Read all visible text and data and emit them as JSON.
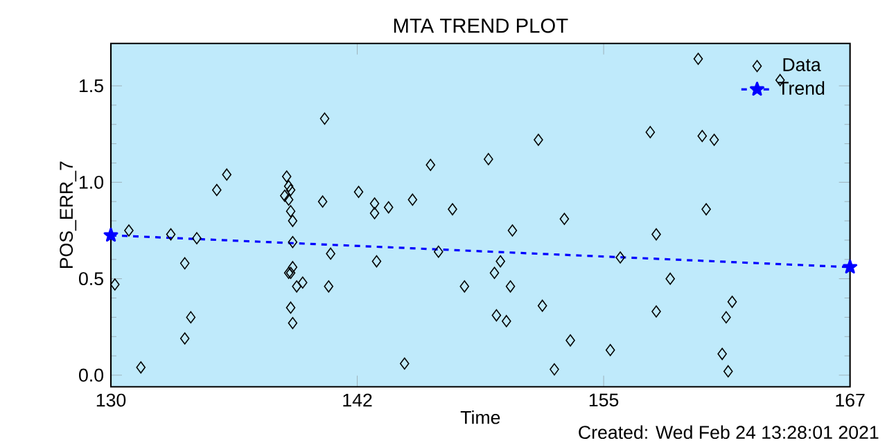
{
  "chart_data": {
    "type": "scatter",
    "title": "MTA TREND PLOT",
    "xlabel": "Time",
    "ylabel": "POS_ERR_7",
    "annotations": [
      "Created: Wed Feb 24 13:28:01 2021"
    ],
    "xlim": [
      130,
      167
    ],
    "ylim": [
      -0.06,
      1.72
    ],
    "xticks": [
      130,
      {
        "value": 142.333,
        "label": "142"
      },
      {
        "value": 154.667,
        "label": "155"
      },
      167
    ],
    "yticks": [
      {
        "value": 0,
        "label": "0.0"
      },
      {
        "value": 0.5,
        "label": "0.5"
      },
      {
        "value": 1,
        "label": "1.0"
      },
      {
        "value": 1.5,
        "label": "1.5"
      }
    ],
    "legend": "top right",
    "grid": false,
    "series": [
      {
        "name": "Data",
        "marker": "diamond",
        "color": "#000000",
        "x": [
          130.2,
          130.9,
          131.5,
          133.0,
          133.7,
          133.7,
          134.0,
          134.3,
          135.3,
          135.8,
          138.8,
          138.9,
          139.0,
          138.7,
          138.9,
          139.0,
          139.1,
          139.1,
          139.1,
          138.9,
          139.0,
          139.3,
          139.6,
          139.0,
          139.1,
          140.6,
          140.7,
          140.9,
          141.0,
          142.4,
          143.2,
          143.2,
          143.3,
          143.9,
          144.7,
          145.1,
          146.0,
          146.4,
          147.1,
          147.7,
          148.9,
          149.2,
          149.3,
          149.5,
          149.8,
          150.0,
          150.1,
          151.4,
          151.6,
          152.2,
          152.7,
          153.0,
          155.0,
          155.5,
          157.0,
          157.3,
          157.3,
          158.0,
          159.4,
          159.6,
          159.8,
          160.2,
          160.6,
          160.8,
          160.9,
          161.1,
          163.5
        ],
        "values": [
          0.47,
          0.75,
          0.04,
          0.73,
          0.58,
          0.19,
          0.3,
          0.71,
          0.96,
          1.04,
          1.03,
          0.98,
          0.96,
          0.93,
          0.91,
          0.85,
          0.8,
          0.69,
          0.56,
          0.53,
          0.53,
          0.46,
          0.48,
          0.35,
          0.27,
          0.9,
          1.33,
          0.46,
          0.63,
          0.95,
          0.89,
          0.84,
          0.59,
          0.87,
          0.06,
          0.91,
          1.09,
          0.64,
          0.86,
          0.46,
          1.12,
          0.53,
          0.31,
          0.59,
          0.28,
          0.46,
          0.75,
          1.22,
          0.36,
          0.03,
          0.81,
          0.18,
          0.13,
          0.61,
          1.26,
          0.33,
          0.73,
          0.5,
          1.64,
          1.24,
          0.86,
          1.22,
          0.11,
          0.3,
          0.02,
          0.38,
          1.53
        ]
      },
      {
        "name": "Trend",
        "type": "line",
        "marker": "star",
        "line_style": "dashed",
        "color": "#0000ff",
        "x": [
          130,
          167
        ],
        "values": [
          0.725,
          0.56
        ]
      }
    ]
  }
}
